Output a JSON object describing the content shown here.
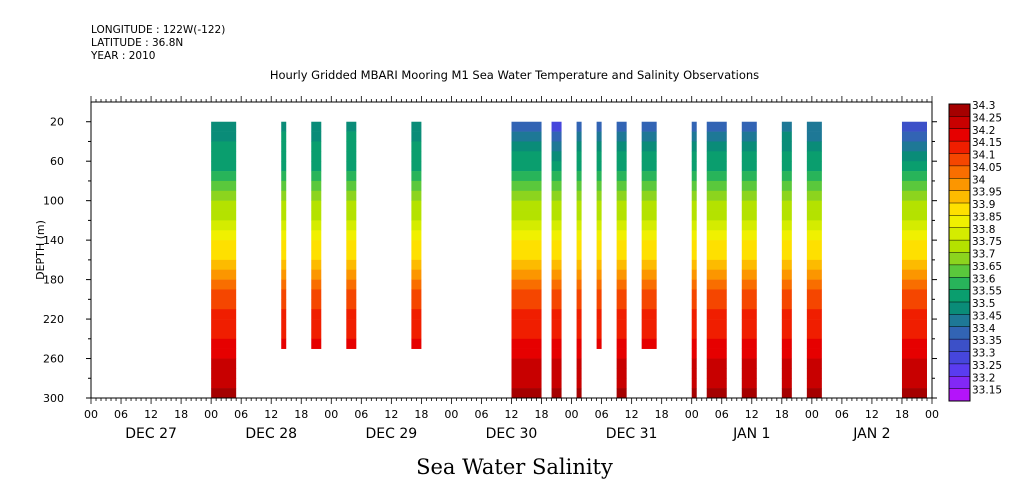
{
  "header": {
    "longitude": "LONGITUDE : 122W(-122)",
    "latitude": "LATITUDE : 36.8N",
    "year": "YEAR : 2010"
  },
  "chart_data": {
    "type": "heatmap",
    "title": "Hourly Gridded MBARI Mooring M1 Sea Water Temperature and Salinity Observations",
    "xlabel": "Sea Water Salinity",
    "ylabel": "DEPTH (m)",
    "ylim": [
      300,
      0
    ],
    "y_ticks": [
      20,
      60,
      100,
      140,
      180,
      220,
      260,
      300
    ],
    "x_hour_labels": [
      "00",
      "06",
      "12",
      "18",
      "00",
      "06",
      "12",
      "18",
      "00",
      "06",
      "12",
      "18",
      "00",
      "06",
      "12",
      "18",
      "00",
      "06",
      "12",
      "18",
      "00",
      "06",
      "12",
      "18",
      "00",
      "06",
      "12",
      "18",
      "00"
    ],
    "x_day_labels": [
      "DEC 27",
      "DEC 28",
      "DEC 29",
      "DEC 30",
      "DEC 31",
      "JAN  1",
      "JAN  2"
    ],
    "x_range_hours": [
      0,
      168
    ],
    "colorbar_levels": [
      "34.3",
      "34.25",
      "34.2",
      "34.15",
      "34.1",
      "34.05",
      "34",
      "33.95",
      "33.9",
      "33.85",
      "33.8",
      "33.75",
      "33.7",
      "33.65",
      "33.6",
      "33.55",
      "33.5",
      "33.45",
      "33.4",
      "33.35",
      "33.3",
      "33.25",
      "33.2",
      "33.15"
    ],
    "colorbar_colors": [
      "#a50000",
      "#c80000",
      "#e60000",
      "#f01e00",
      "#f54600",
      "#f96e00",
      "#fc9600",
      "#fdbb00",
      "#fee000",
      "#f0f000",
      "#d4ec00",
      "#b4e200",
      "#8cd41e",
      "#5ac83c",
      "#28b45a",
      "#0a9e6e",
      "#0a8c78",
      "#1e7896",
      "#3264b4",
      "#3c50c8",
      "#4646dc",
      "#5a3cf0",
      "#8228f5",
      "#b414fa"
    ],
    "observation_windows": [
      {
        "start_hour": 24,
        "end_hour": 29,
        "surface_salinity": 33.45,
        "max_depth": 300
      },
      {
        "start_hour": 38,
        "end_hour": 39,
        "surface_salinity": 33.5,
        "max_depth": 250
      },
      {
        "start_hour": 44,
        "end_hour": 46,
        "surface_salinity": 33.45,
        "max_depth": 250
      },
      {
        "start_hour": 51,
        "end_hour": 53,
        "surface_salinity": 33.5,
        "max_depth": 250
      },
      {
        "start_hour": 64,
        "end_hour": 66,
        "surface_salinity": 33.45,
        "max_depth": 250
      },
      {
        "start_hour": 84,
        "end_hour": 90,
        "surface_salinity": 33.3,
        "max_depth": 300
      },
      {
        "start_hour": 92,
        "end_hour": 94,
        "surface_salinity": 33.15,
        "max_depth": 300
      },
      {
        "start_hour": 97,
        "end_hour": 98,
        "surface_salinity": 33.3,
        "max_depth": 300
      },
      {
        "start_hour": 101,
        "end_hour": 102,
        "surface_salinity": 33.3,
        "max_depth": 250
      },
      {
        "start_hour": 105,
        "end_hour": 107,
        "surface_salinity": 33.3,
        "max_depth": 300
      },
      {
        "start_hour": 110,
        "end_hour": 113,
        "surface_salinity": 33.3,
        "max_depth": 250
      },
      {
        "start_hour": 120,
        "end_hour": 121,
        "surface_salinity": 33.3,
        "max_depth": 300
      },
      {
        "start_hour": 123,
        "end_hour": 127,
        "surface_salinity": 33.3,
        "max_depth": 300
      },
      {
        "start_hour": 130,
        "end_hour": 133,
        "surface_salinity": 33.3,
        "max_depth": 300
      },
      {
        "start_hour": 138,
        "end_hour": 140,
        "surface_salinity": 33.4,
        "max_depth": 300
      },
      {
        "start_hour": 143,
        "end_hour": 146,
        "surface_salinity": 33.35,
        "max_depth": 300
      },
      {
        "start_hour": 162,
        "end_hour": 167,
        "surface_salinity": 33.2,
        "max_depth": 300
      }
    ]
  }
}
